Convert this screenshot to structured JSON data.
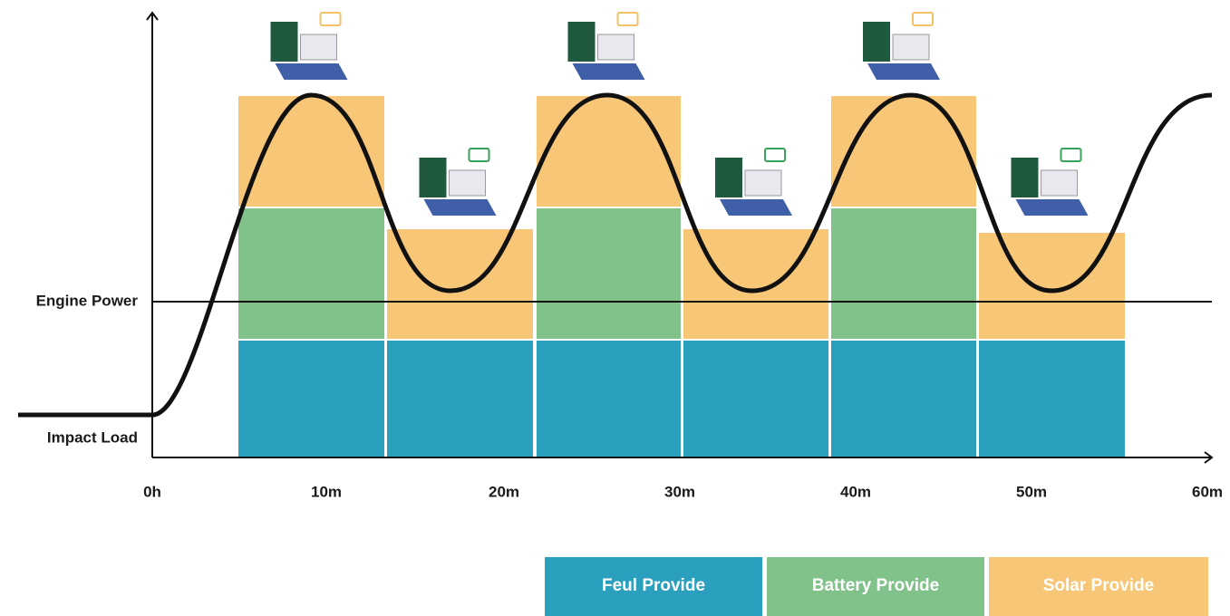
{
  "y_labels": [
    "Engine Power",
    "Impact Load"
  ],
  "x_labels": [
    "0h",
    "10m",
    "20m",
    "30m",
    "40m",
    "50m",
    "60m"
  ],
  "legend": [
    "Feul Provide",
    "Battery Provide",
    "Solar Provide"
  ]
}
